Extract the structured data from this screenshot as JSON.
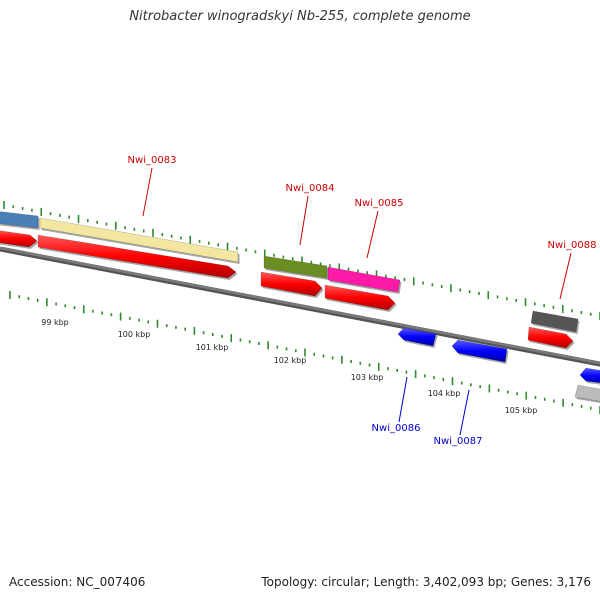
{
  "title": "Nitrobacter winogradskyi Nb-255, complete genome",
  "footer": {
    "accession": "Accession: NC_007406",
    "summary": "Topology: circular; Length: 3,402,093 bp; Genes: 3,176"
  },
  "colors": {
    "backbone": "#7a7a7a",
    "tick": "#2e8b2e",
    "forward_label": "#cc0000",
    "reverse_label": "#0000cc",
    "gene_red": "#ff0000",
    "gene_blue": "#0000ff"
  },
  "scale_labels": [
    {
      "text": "99 kbp"
    },
    {
      "text": "100 kbp"
    },
    {
      "text": "101 kbp"
    },
    {
      "text": "102 kbp"
    },
    {
      "text": "103 kbp"
    },
    {
      "text": "104 kbp"
    },
    {
      "text": "105 kbp"
    }
  ],
  "genes": [
    {
      "label": "",
      "strand": "forward",
      "track": "category",
      "color": "#4a7fb5"
    },
    {
      "label": "",
      "strand": "forward",
      "track": "gene",
      "color": "#ff0000"
    },
    {
      "label": "Nwi_0083",
      "strand": "forward",
      "track": "category",
      "color": "#f2e6a0"
    },
    {
      "label": "",
      "strand": "forward",
      "track": "gene",
      "color": "#ff0000"
    },
    {
      "label": "Nwi_0084",
      "strand": "forward",
      "track": "category",
      "color": "#6b8e23"
    },
    {
      "label": "",
      "strand": "forward",
      "track": "gene",
      "color": "#ff0000"
    },
    {
      "label": "Nwi_0085",
      "strand": "forward",
      "track": "category",
      "color": "#ff1aa8"
    },
    {
      "label": "",
      "strand": "forward",
      "track": "gene",
      "color": "#ff0000"
    },
    {
      "label": "Nwi_0086",
      "strand": "reverse",
      "track": "gene",
      "color": "#0000ff"
    },
    {
      "label": "Nwi_0087",
      "strand": "reverse",
      "track": "gene",
      "color": "#0000ff"
    },
    {
      "label": "Nwi_0088",
      "strand": "forward",
      "track": "category",
      "color": "#555555"
    },
    {
      "label": "",
      "strand": "forward",
      "track": "gene",
      "color": "#ff0000"
    },
    {
      "label": "",
      "strand": "reverse",
      "track": "gene",
      "color": "#0000ff"
    },
    {
      "label": "",
      "strand": "reverse",
      "track": "category",
      "color": "#bbbbbb"
    }
  ]
}
